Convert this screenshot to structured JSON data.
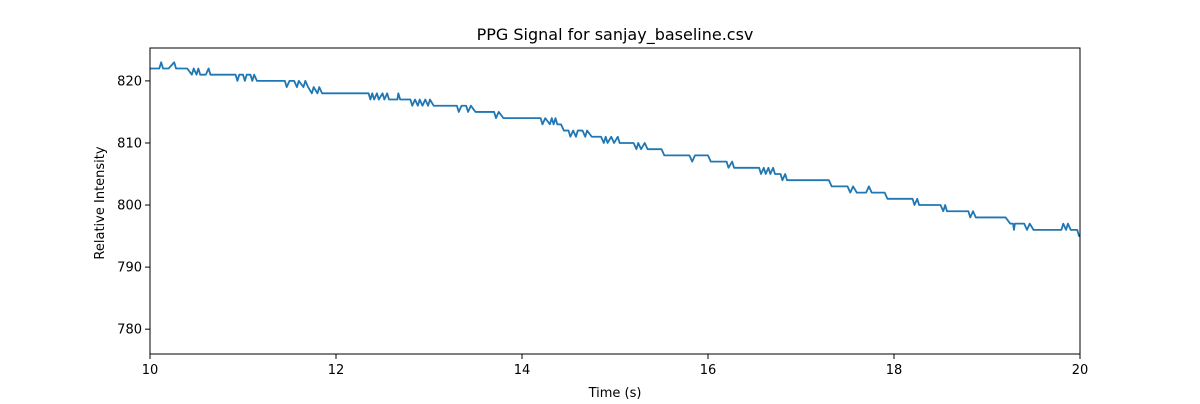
{
  "chart_data": {
    "type": "line",
    "title": "PPG Signal for sanjay_baseline.csv",
    "xlabel": "Time (s)",
    "ylabel": "Relative Intensity",
    "xlim": [
      10,
      20
    ],
    "ylim": [
      776,
      825.3
    ],
    "x_ticks": [
      10,
      12,
      14,
      16,
      18,
      20
    ],
    "y_ticks": [
      780,
      790,
      800,
      810,
      820
    ],
    "grid": false,
    "legend": "none",
    "series": [
      {
        "color": "#1f77b4",
        "baseline": [
          [
            10.0,
            822
          ],
          [
            10.05,
            822
          ],
          [
            10.1,
            822
          ],
          [
            10.12,
            823
          ],
          [
            10.14,
            822
          ],
          [
            10.2,
            822
          ],
          [
            10.26,
            823
          ],
          [
            10.28,
            822
          ],
          [
            10.4,
            822
          ],
          [
            10.45,
            821
          ],
          [
            10.47,
            822
          ],
          [
            10.5,
            821
          ],
          [
            10.52,
            822
          ],
          [
            10.54,
            821
          ],
          [
            10.6,
            821
          ],
          [
            10.63,
            822
          ],
          [
            10.65,
            821
          ],
          [
            10.8,
            821
          ],
          [
            10.92,
            821
          ],
          [
            10.94,
            820
          ],
          [
            10.96,
            821
          ],
          [
            11.0,
            821
          ],
          [
            11.02,
            820
          ],
          [
            11.04,
            821
          ],
          [
            11.08,
            821
          ],
          [
            11.1,
            820
          ],
          [
            11.12,
            821
          ],
          [
            11.15,
            820
          ],
          [
            11.45,
            820
          ],
          [
            11.47,
            819
          ],
          [
            11.5,
            820
          ],
          [
            11.55,
            820
          ],
          [
            11.58,
            819
          ],
          [
            11.6,
            820
          ],
          [
            11.65,
            819
          ],
          [
            11.67,
            820
          ],
          [
            11.7,
            819
          ],
          [
            11.74,
            818
          ],
          [
            11.76,
            819
          ],
          [
            11.8,
            818
          ],
          [
            11.82,
            819
          ],
          [
            11.85,
            818
          ],
          [
            12.35,
            818
          ],
          [
            12.37,
            817
          ],
          [
            12.39,
            818
          ],
          [
            12.41,
            817
          ],
          [
            12.44,
            818
          ],
          [
            12.46,
            817
          ],
          [
            12.5,
            818
          ],
          [
            12.52,
            817
          ],
          [
            12.55,
            818
          ],
          [
            12.57,
            817
          ],
          [
            12.66,
            817
          ],
          [
            12.67,
            818
          ],
          [
            12.69,
            817
          ],
          [
            12.8,
            817
          ],
          [
            12.82,
            816
          ],
          [
            12.85,
            817
          ],
          [
            12.88,
            816
          ],
          [
            12.9,
            817
          ],
          [
            12.93,
            816
          ],
          [
            12.96,
            817
          ],
          [
            12.99,
            816
          ],
          [
            13.01,
            817
          ],
          [
            13.05,
            816
          ],
          [
            13.3,
            816
          ],
          [
            13.32,
            815
          ],
          [
            13.35,
            816
          ],
          [
            13.4,
            816
          ],
          [
            13.42,
            815
          ],
          [
            13.45,
            816
          ],
          [
            13.5,
            815
          ],
          [
            13.7,
            815
          ],
          [
            13.72,
            814
          ],
          [
            13.75,
            815
          ],
          [
            13.8,
            814
          ],
          [
            14.0,
            814
          ],
          [
            14.2,
            814
          ],
          [
            14.22,
            813
          ],
          [
            14.25,
            814
          ],
          [
            14.3,
            813
          ],
          [
            14.32,
            814
          ],
          [
            14.34,
            813
          ],
          [
            14.36,
            814
          ],
          [
            14.38,
            813
          ],
          [
            14.42,
            813
          ],
          [
            14.45,
            812
          ],
          [
            14.5,
            812
          ],
          [
            14.52,
            811
          ],
          [
            14.55,
            812
          ],
          [
            14.58,
            811
          ],
          [
            14.6,
            812
          ],
          [
            14.65,
            812
          ],
          [
            14.68,
            811
          ],
          [
            14.7,
            812
          ],
          [
            14.75,
            811
          ],
          [
            14.85,
            811
          ],
          [
            14.88,
            810
          ],
          [
            14.9,
            811
          ],
          [
            14.92,
            810
          ],
          [
            14.96,
            811
          ],
          [
            14.99,
            810
          ],
          [
            15.03,
            811
          ],
          [
            15.05,
            810
          ],
          [
            15.2,
            810
          ],
          [
            15.23,
            809
          ],
          [
            15.25,
            810
          ],
          [
            15.28,
            809
          ],
          [
            15.32,
            810
          ],
          [
            15.35,
            809
          ],
          [
            15.5,
            809
          ],
          [
            15.53,
            808
          ],
          [
            15.6,
            808
          ],
          [
            15.8,
            808
          ],
          [
            15.83,
            807
          ],
          [
            15.86,
            808
          ],
          [
            16.0,
            808
          ],
          [
            16.03,
            807
          ],
          [
            16.2,
            807
          ],
          [
            16.22,
            806
          ],
          [
            16.26,
            807
          ],
          [
            16.28,
            806
          ],
          [
            16.55,
            806
          ],
          [
            16.57,
            805
          ],
          [
            16.6,
            806
          ],
          [
            16.62,
            805
          ],
          [
            16.65,
            806
          ],
          [
            16.67,
            805
          ],
          [
            16.7,
            806
          ],
          [
            16.72,
            805
          ],
          [
            16.78,
            805
          ],
          [
            16.8,
            804
          ],
          [
            16.83,
            805
          ],
          [
            16.85,
            804
          ],
          [
            17.0,
            804
          ],
          [
            17.3,
            804
          ],
          [
            17.33,
            803
          ],
          [
            17.5,
            803
          ],
          [
            17.53,
            802
          ],
          [
            17.56,
            803
          ],
          [
            17.6,
            802
          ],
          [
            17.7,
            802
          ],
          [
            17.73,
            803
          ],
          [
            17.76,
            802
          ],
          [
            17.9,
            802
          ],
          [
            17.93,
            801
          ],
          [
            18.0,
            801
          ],
          [
            18.2,
            801
          ],
          [
            18.22,
            800
          ],
          [
            18.25,
            801
          ],
          [
            18.27,
            800
          ],
          [
            18.3,
            800
          ],
          [
            18.5,
            800
          ],
          [
            18.53,
            799
          ],
          [
            18.55,
            800
          ],
          [
            18.57,
            799
          ],
          [
            18.62,
            799
          ],
          [
            18.8,
            799
          ],
          [
            18.82,
            798
          ],
          [
            18.85,
            799
          ],
          [
            18.88,
            798
          ],
          [
            18.95,
            798
          ],
          [
            19.0,
            798
          ],
          [
            19.2,
            798
          ],
          [
            19.25,
            797
          ],
          [
            19.28,
            797
          ],
          [
            19.29,
            796
          ],
          [
            19.3,
            797
          ],
          [
            19.4,
            797
          ],
          [
            19.43,
            796
          ],
          [
            19.46,
            797
          ],
          [
            19.5,
            796
          ],
          [
            19.8,
            796
          ],
          [
            19.82,
            797
          ],
          [
            19.85,
            796
          ],
          [
            19.87,
            797
          ],
          [
            19.9,
            796
          ],
          [
            19.97,
            796
          ],
          [
            19.99,
            795
          ],
          [
            20.0,
            795
          ]
        ]
      }
    ]
  }
}
